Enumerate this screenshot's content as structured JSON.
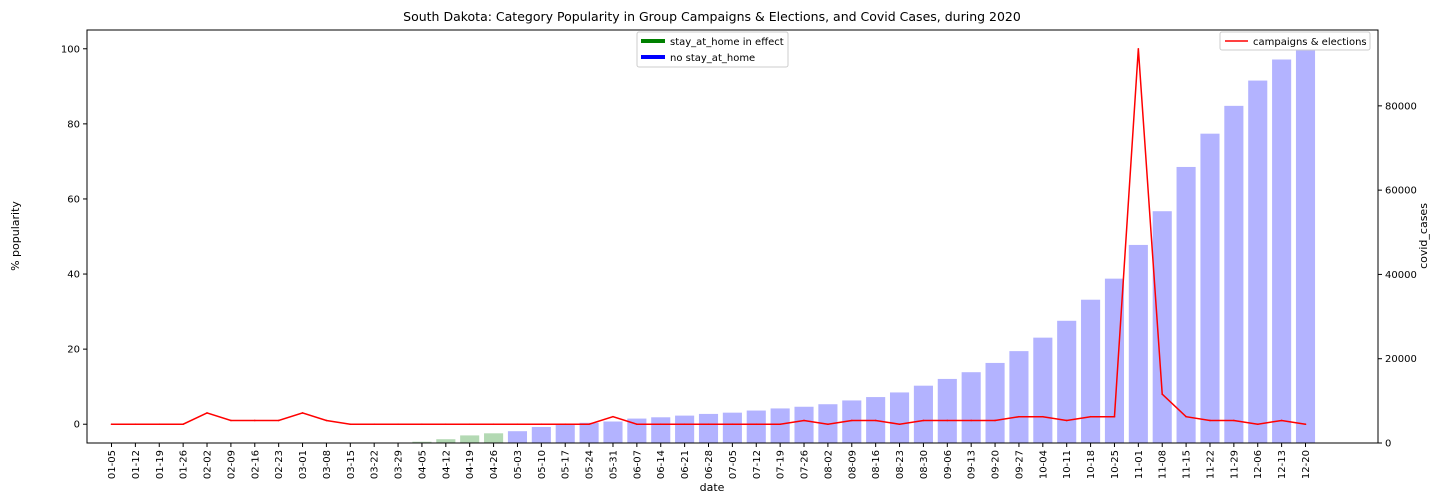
{
  "chart_data": {
    "type": "bar+line",
    "title": "South Dakota: Category Popularity in Group Campaigns & Elections, and Covid Cases, during 2020",
    "xlabel": "date",
    "ylabel_left": "% popularity",
    "ylabel_right": "covid_cases",
    "ylim_left": [
      -5,
      105
    ],
    "ylim_right": [
      0,
      98000
    ],
    "yticks_left": [
      0,
      20,
      40,
      60,
      80,
      100
    ],
    "yticks_right": [
      0,
      20000,
      40000,
      60000,
      80000
    ],
    "categories": [
      "01-05",
      "01-12",
      "01-19",
      "01-26",
      "02-02",
      "02-09",
      "02-16",
      "02-23",
      "03-01",
      "03-08",
      "03-15",
      "03-22",
      "03-29",
      "04-05",
      "04-12",
      "04-19",
      "04-26",
      "05-03",
      "05-10",
      "05-17",
      "05-24",
      "05-31",
      "06-07",
      "06-14",
      "06-21",
      "06-28",
      "07-05",
      "07-12",
      "07-19",
      "07-26",
      "08-02",
      "08-09",
      "08-16",
      "08-23",
      "08-30",
      "09-06",
      "09-13",
      "09-20",
      "09-27",
      "10-04",
      "10-11",
      "10-18",
      "10-25",
      "11-01",
      "11-08",
      "11-15",
      "11-22",
      "11-29",
      "12-06",
      "12-13",
      "12-20"
    ],
    "stay_at_home": [
      false,
      false,
      false,
      false,
      false,
      false,
      false,
      false,
      false,
      false,
      false,
      false,
      false,
      true,
      true,
      true,
      true,
      false,
      false,
      false,
      false,
      false,
      false,
      false,
      false,
      false,
      false,
      false,
      false,
      false,
      false,
      false,
      false,
      false,
      false,
      false,
      false,
      false,
      false,
      false,
      false,
      false,
      false,
      false,
      false,
      false,
      false,
      false,
      false,
      false,
      false
    ],
    "covid_cases": [
      0,
      0,
      0,
      0,
      0,
      0,
      0,
      0,
      0,
      0,
      0,
      10,
      100,
      300,
      900,
      1800,
      2300,
      2800,
      3800,
      4300,
      4800,
      5100,
      5800,
      6100,
      6500,
      6900,
      7200,
      7700,
      8200,
      8600,
      9200,
      10100,
      10900,
      12000,
      13600,
      15200,
      16800,
      19000,
      21800,
      25000,
      29000,
      34000,
      39000,
      47000,
      55000,
      65500,
      73400,
      80000,
      86000,
      91000,
      95500
    ],
    "series": [
      {
        "name": "campaigns & elections",
        "axis": "left",
        "values": [
          0,
          0,
          0,
          0,
          3,
          1,
          1,
          1,
          3,
          1,
          0,
          0,
          0,
          0,
          0,
          0,
          0,
          0,
          0,
          0,
          0,
          2,
          0,
          0,
          0,
          0,
          0,
          0,
          0,
          1,
          0,
          1,
          1,
          0,
          1,
          1,
          1,
          1,
          2,
          2,
          1,
          2,
          2,
          100,
          8,
          2,
          1,
          1,
          0,
          1,
          0
        ]
      }
    ],
    "legend_bars": [
      {
        "label": "stay_at_home in effect",
        "color": "#008000"
      },
      {
        "label": "no stay_at_home",
        "color": "#0000ff"
      }
    ],
    "legend_line": {
      "label": "campaigns & elections",
      "color": "#ff0000"
    },
    "colors": {
      "bar_stay": "#b3d9b3",
      "bar_no_stay": "#b3b3ff",
      "line": "#ff0000"
    }
  }
}
